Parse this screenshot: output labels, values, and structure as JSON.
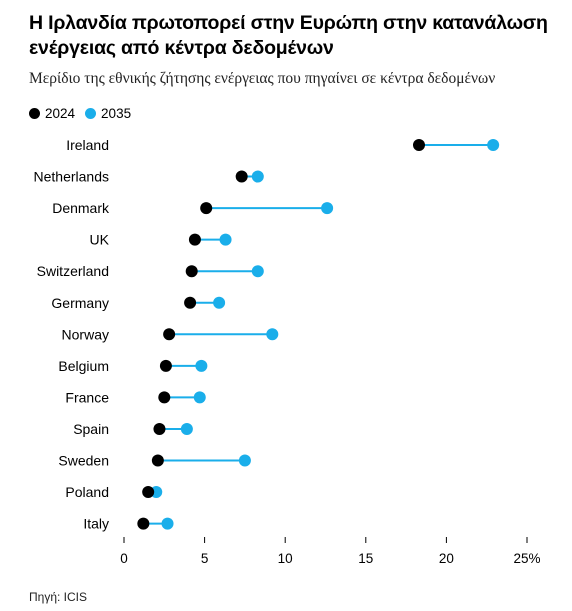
{
  "title": "Η Ιρλανδία πρωτοπορεί στην Ευρώπη στην κατανάλωση ενέργειας από κέντρα δεδομένων",
  "subtitle": "Μερίδιο της εθνικής ζήτησης ενέργειας που πηγαίνει σε κέντρα δεδομένων",
  "source": "Πηγή: ICIS",
  "colors": {
    "series_2024": "#000000",
    "series_2035": "#1aaeea",
    "connector": "#1aaeea",
    "axis": "#000000"
  },
  "chart_data": {
    "type": "dot-plot",
    "categories": [
      "Ireland",
      "Netherlands",
      "Denmark",
      "UK",
      "Switzerland",
      "Germany",
      "Norway",
      "Belgium",
      "France",
      "Spain",
      "Sweden",
      "Poland",
      "Italy"
    ],
    "series": [
      {
        "name": "2024",
        "values": [
          18.3,
          7.3,
          5.1,
          4.4,
          4.2,
          4.1,
          2.8,
          2.6,
          2.5,
          2.2,
          2.1,
          1.5,
          1.2
        ]
      },
      {
        "name": "2035",
        "values": [
          22.9,
          8.3,
          12.6,
          6.3,
          8.3,
          5.9,
          9.2,
          4.8,
          4.7,
          3.9,
          7.5,
          2.0,
          2.7
        ]
      }
    ],
    "xlim": [
      0,
      25
    ],
    "xticks": [
      0,
      5,
      10,
      15,
      20,
      25
    ],
    "xtick_labels": [
      "0",
      "5",
      "10",
      "15",
      "20",
      "25%"
    ],
    "legend_position": "top-left",
    "grid": false
  }
}
